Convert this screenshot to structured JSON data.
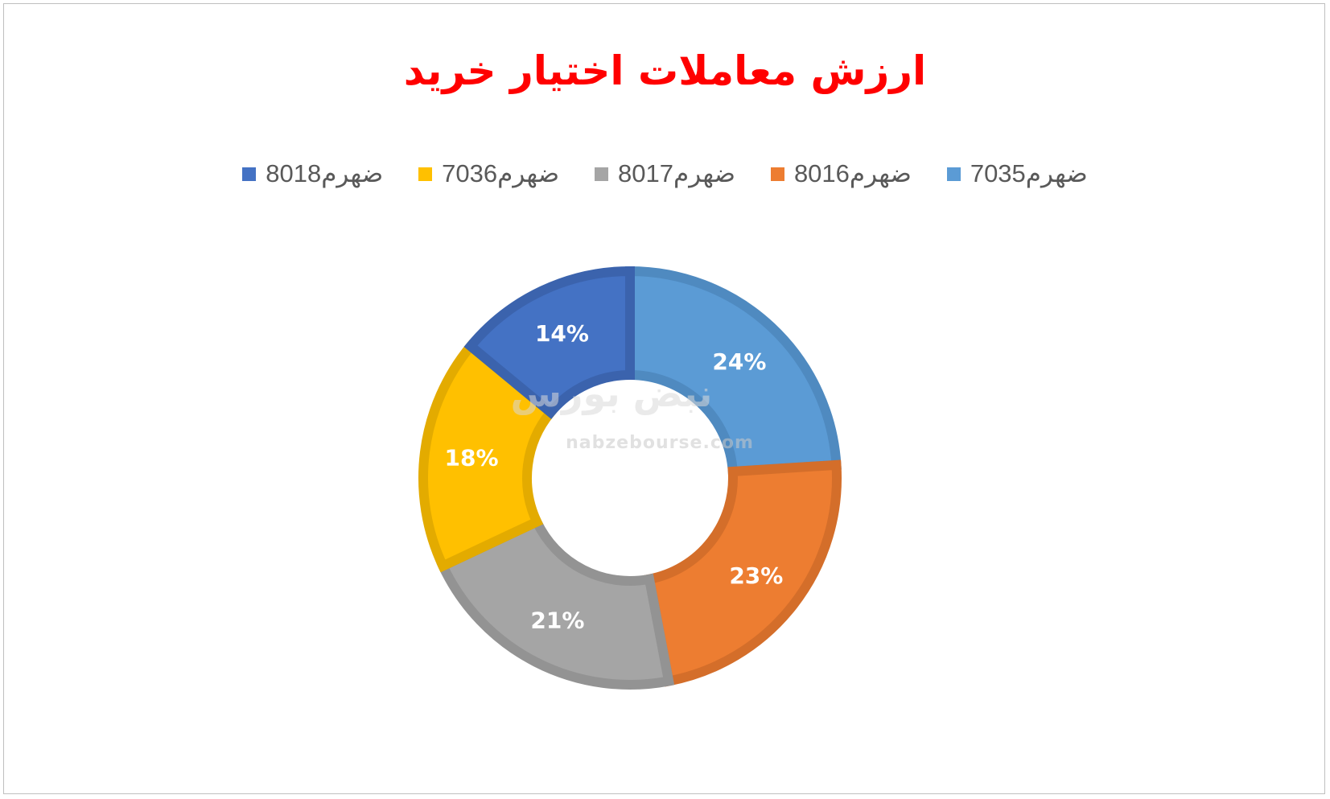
{
  "chart_data": {
    "type": "pie",
    "variant": "doughnut",
    "title": "ارزش معاملات اختیار خرید",
    "legend_position": "top",
    "categories": [
      "ضهرم7035",
      "ضهرم8016",
      "ضهرم8017",
      "ضهرم7036",
      "ضهرم8018"
    ],
    "values": [
      24,
      23,
      21,
      18,
      14
    ],
    "data_labels": [
      "24%",
      "23%",
      "21%",
      "18%",
      "14%"
    ],
    "colors": [
      "#5b9bd5",
      "#ed7d31",
      "#a5a5a5",
      "#ffc000",
      "#4472c4"
    ],
    "border_colors": [
      "#4f8ac0",
      "#d46e2a",
      "#939393",
      "#e3ab00",
      "#3b63ad"
    ]
  },
  "watermark": {
    "logo": "نبض بورس",
    "site": "nabzebourse.com"
  }
}
